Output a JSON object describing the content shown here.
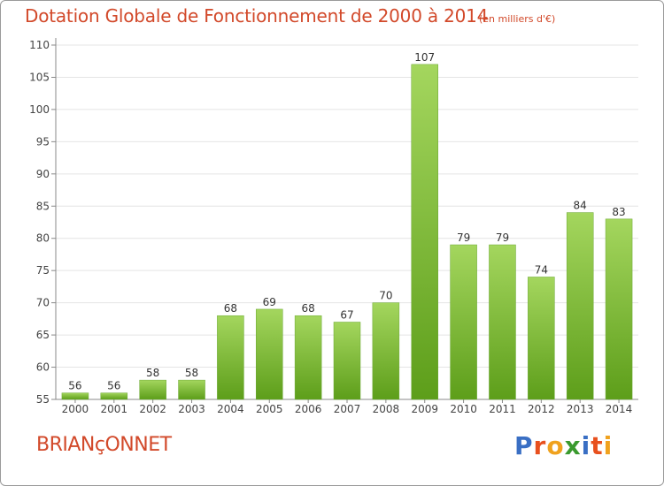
{
  "title": "Dotation Globale de Fonctionnement de 2000 à 2014",
  "subtitle": "(en milliers d'€)",
  "commune": "BRIANçONNET",
  "logo_text": "Proxiti",
  "logo_colors": [
    "#3a6fc4",
    "#e8501e",
    "#f0a21e",
    "#3a9a2e",
    "#3a6fc4",
    "#e8501e",
    "#f0a21e"
  ],
  "colors": {
    "title": "#d2492a",
    "bar_light": "#a4d65e",
    "bar_dark": "#5d9e1a"
  },
  "chart_data": {
    "type": "bar",
    "categories": [
      "2000",
      "2001",
      "2002",
      "2003",
      "2004",
      "2005",
      "2006",
      "2007",
      "2008",
      "2009",
      "2010",
      "2011",
      "2012",
      "2013",
      "2014"
    ],
    "values": [
      56,
      56,
      58,
      58,
      68,
      69,
      68,
      67,
      70,
      107,
      79,
      79,
      74,
      84,
      83
    ],
    "data_labels": [
      "56",
      "56",
      "58",
      "58",
      "68",
      "69",
      "68",
      "67",
      "70",
      "107",
      "79",
      "79",
      "74",
      "84",
      "83"
    ],
    "ylim": [
      55,
      110
    ],
    "yticks": [
      55,
      60,
      65,
      70,
      75,
      80,
      85,
      90,
      95,
      100,
      105,
      110
    ],
    "grid": true
  }
}
